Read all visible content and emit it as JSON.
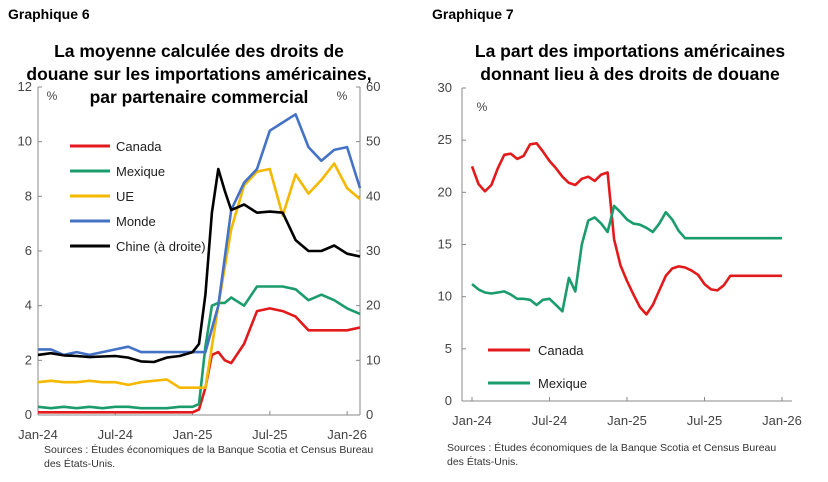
{
  "chart_data": [
    {
      "type": "line",
      "panel_label": "Graphique 6",
      "title_lines": [
        "La moyenne calculée des droits de",
        "douane sur les importations américaines,",
        "par partenaire commercial"
      ],
      "left_unit": "%",
      "right_unit": "%",
      "ylim_left": [
        0,
        12
      ],
      "ylim_right": [
        0,
        60
      ],
      "left_ticks": [
        "0",
        "2",
        "4",
        "6",
        "8",
        "10",
        "12"
      ],
      "right_ticks": [
        "0",
        "10",
        "20",
        "30",
        "40",
        "50",
        "60"
      ],
      "x_ticks": [
        "Jan-24",
        "Jul-24",
        "Jan-25",
        "Jul-25",
        "Jan-26"
      ],
      "x_range": [
        0,
        25
      ],
      "x_tick_positions": [
        0,
        6,
        12,
        18,
        24
      ],
      "series": [
        {
          "name": "Canada",
          "color": "#e31a1c",
          "axis": "left",
          "x": [
            0,
            1,
            2,
            3,
            4,
            5,
            6,
            7,
            8,
            9,
            10,
            11,
            12,
            12.5,
            13,
            13.5,
            14,
            14.5,
            15,
            16,
            17,
            18,
            19,
            20,
            21,
            22,
            22.5,
            23,
            24,
            25
          ],
          "y": [
            0.1,
            0.1,
            0.1,
            0.1,
            0.1,
            0.1,
            0.1,
            0.1,
            0.1,
            0.1,
            0.1,
            0.1,
            0.1,
            0.2,
            1.0,
            2.2,
            2.3,
            2.0,
            1.9,
            2.6,
            3.8,
            3.9,
            3.8,
            3.6,
            3.1,
            3.1,
            3.1,
            3.1,
            3.1,
            3.2
          ]
        },
        {
          "name": "Mexique",
          "color": "#1a9c6c",
          "axis": "left",
          "x": [
            0,
            1,
            2,
            3,
            4,
            5,
            6,
            7,
            8,
            9,
            10,
            11,
            12,
            12.5,
            13,
            13.5,
            14,
            14.5,
            15,
            16,
            17,
            18,
            19,
            20,
            21,
            22,
            23,
            24,
            25
          ],
          "y": [
            0.3,
            0.25,
            0.3,
            0.25,
            0.3,
            0.25,
            0.3,
            0.3,
            0.25,
            0.25,
            0.25,
            0.3,
            0.3,
            0.4,
            2.5,
            4.0,
            4.1,
            4.1,
            4.3,
            4.0,
            4.7,
            4.7,
            4.7,
            4.6,
            4.2,
            4.4,
            4.2,
            3.9,
            3.7
          ]
        },
        {
          "name": "UE",
          "color": "#f5b800",
          "axis": "left",
          "x": [
            0,
            1,
            2,
            3,
            4,
            5,
            6,
            7,
            8,
            9,
            10,
            11,
            12,
            13,
            14,
            15,
            16,
            17,
            18,
            19,
            20,
            21,
            22,
            23,
            24,
            25
          ],
          "y": [
            1.2,
            1.25,
            1.2,
            1.2,
            1.25,
            1.2,
            1.2,
            1.1,
            1.2,
            1.25,
            1.3,
            1.0,
            1.0,
            1.0,
            4.0,
            6.8,
            8.4,
            8.9,
            9.0,
            7.3,
            8.8,
            8.1,
            8.6,
            9.2,
            8.3,
            7.9
          ]
        },
        {
          "name": "Monde",
          "color": "#4472c4",
          "axis": "left",
          "x": [
            0,
            1,
            2,
            3,
            4,
            5,
            6,
            7,
            8,
            9,
            10,
            11,
            12,
            13,
            14,
            15,
            16,
            17,
            18,
            19,
            20,
            21,
            22,
            23,
            24,
            25
          ],
          "y": [
            2.4,
            2.4,
            2.2,
            2.3,
            2.2,
            2.3,
            2.4,
            2.5,
            2.3,
            2.3,
            2.3,
            2.3,
            2.3,
            2.3,
            4.0,
            7.5,
            8.5,
            9.0,
            10.4,
            10.7,
            11.0,
            9.8,
            9.3,
            9.7,
            9.8,
            8.3
          ]
        },
        {
          "name": "Chine (à droite)",
          "color": "#000000",
          "axis": "right",
          "x": [
            0,
            1,
            2,
            3,
            4,
            5,
            6,
            7,
            8,
            9,
            10,
            11,
            12,
            12.5,
            13,
            13.5,
            14,
            14.5,
            15,
            15.5,
            16,
            17,
            18,
            19,
            20,
            21,
            22,
            23,
            24,
            25
          ],
          "y": [
            11,
            11.3,
            10.9,
            10.8,
            10.6,
            10.7,
            10.8,
            10.5,
            9.8,
            9.7,
            10.5,
            10.8,
            11.5,
            13,
            22,
            37,
            45,
            41,
            37.5,
            38,
            38.5,
            37,
            37.2,
            37,
            32,
            30,
            30,
            31,
            29.5,
            29
          ]
        }
      ],
      "source": "Sources : Études économiques de la Banque Scotia et Census Bureau des États-Unis."
    },
    {
      "type": "line",
      "panel_label": "Graphique 7",
      "title_lines": [
        "La part des importations américaines",
        "donnant lieu à des droits de douane"
      ],
      "unit": "%",
      "ylim": [
        0,
        30
      ],
      "y_ticks": [
        "0",
        "5",
        "10",
        "15",
        "20",
        "25",
        "30"
      ],
      "x_ticks": [
        "Jan-24",
        "Jul-24",
        "Jan-25",
        "Jul-25",
        "Jan-26"
      ],
      "x_range": [
        0,
        24
      ],
      "x_tick_positions": [
        0,
        6,
        12,
        18,
        24
      ],
      "series": [
        {
          "name": "Canada",
          "color": "#e31a1c",
          "x": [
            0,
            0.5,
            1,
            1.5,
            2,
            2.5,
            3,
            3.5,
            4,
            4.5,
            5,
            5.5,
            6,
            6.5,
            7,
            7.5,
            8,
            8.5,
            9,
            9.5,
            10,
            10.5,
            11,
            11.5,
            12,
            12.5,
            13,
            13.5,
            14,
            14.5,
            15,
            15.5,
            16,
            16.5,
            17,
            17.5,
            18,
            18.5,
            19,
            19.5,
            20,
            20.5,
            21,
            21.5,
            22,
            22.5,
            23,
            23.5,
            24
          ],
          "y": [
            22.5,
            20.8,
            20.1,
            20.7,
            22.3,
            23.6,
            23.7,
            23.2,
            23.5,
            24.6,
            24.7,
            23.9,
            23.0,
            22.3,
            21.5,
            20.9,
            20.7,
            21.3,
            21.5,
            21.1,
            21.7,
            21.9,
            15.5,
            13.0,
            11.5,
            10.2,
            9.0,
            8.3,
            9.2,
            10.6,
            12.0,
            12.7,
            12.9,
            12.8,
            12.5,
            12.1,
            11.2,
            10.7,
            10.6,
            11.1,
            12.0,
            12.0,
            12.0,
            12.0,
            12.0,
            12.0,
            12.0,
            12.0,
            12.0
          ]
        },
        {
          "name": "Mexique",
          "color": "#1a9c6c",
          "x": [
            0,
            0.5,
            1,
            1.5,
            2,
            2.5,
            3,
            3.5,
            4,
            4.5,
            5,
            5.5,
            6,
            6.5,
            7,
            7.5,
            8,
            8.5,
            9,
            9.5,
            10,
            10.5,
            11,
            11.5,
            12,
            12.5,
            13,
            13.5,
            14,
            14.5,
            15,
            15.5,
            16,
            16.5,
            17,
            17.5,
            18,
            18.5,
            19,
            19.5,
            20,
            20.5,
            21,
            21.5,
            22,
            22.5,
            23,
            23.5,
            24
          ],
          "y": [
            11.2,
            10.7,
            10.4,
            10.3,
            10.4,
            10.5,
            10.2,
            9.8,
            9.8,
            9.7,
            9.2,
            9.7,
            9.8,
            9.2,
            8.6,
            11.8,
            10.5,
            15.0,
            17.3,
            17.6,
            17.0,
            16.2,
            18.7,
            18.1,
            17.4,
            17.0,
            16.9,
            16.6,
            16.2,
            17.0,
            18.1,
            17.4,
            16.3,
            15.6,
            15.6,
            15.6,
            15.6,
            15.6,
            15.6,
            15.6,
            15.6,
            15.6,
            15.6,
            15.6,
            15.6,
            15.6,
            15.6,
            15.6,
            15.6
          ]
        }
      ],
      "source": "Sources : Études économiques de la Banque Scotia et Census Bureau des États-Unis."
    }
  ]
}
